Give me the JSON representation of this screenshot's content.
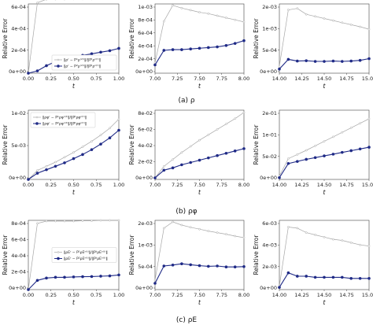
{
  "figure": {
    "captions": [
      "(a)  ρ",
      "(b)  ρφ",
      "(c)  ρE"
    ],
    "series_colors": {
      "gray": "#a6a6a6",
      "blue": "#1f2a86"
    },
    "ylabel": "Relative Error",
    "xlabel": "t"
  },
  "chart_data": [
    {
      "type": "line",
      "row": 0,
      "col": 0,
      "xlim": [
        0,
        1
      ],
      "ylim": [
        0,
        0.0006
      ],
      "xticks": [
        "0.00",
        "0.25",
        "0.50",
        "0.75",
        "1.00"
      ],
      "yticks": [
        "0e+00",
        "2e-04",
        "4e-04",
        "6e-04"
      ],
      "x": [
        0.0,
        0.1,
        0.2,
        0.3,
        0.4,
        0.5,
        0.6,
        0.7,
        0.8,
        0.9,
        1.0
      ],
      "legend_position": "lower-right",
      "series": [
        {
          "name": "‖ρʳ − P¹ρⁿ⁽ᵗ⁾‖/‖Pᵗρⁿ⁽ᵗ⁾‖",
          "color": "gray",
          "values": [
            0.0,
            0.00061,
            0.00064,
            0.000641,
            0.000641,
            0.000642,
            0.000642,
            0.000642,
            0.000643,
            0.000643,
            0.000644
          ]
        },
        {
          "name": "‖ρʳ − P²ρⁿ⁽ᵗ⁾‖/‖Pᵗρⁿ⁽ᵗ⁾‖",
          "color": "blue",
          "values": [
            0.0,
            2e-05,
            6.5e-05,
            0.0001,
            0.00012,
            0.00014,
            0.000155,
            0.000168,
            0.000182,
            0.000195,
            0.000215
          ]
        }
      ]
    },
    {
      "type": "line",
      "row": 0,
      "col": 1,
      "xlim": [
        7,
        8
      ],
      "ylim": [
        0,
        0.001
      ],
      "xticks": [
        "7.00",
        "7.25",
        "7.50",
        "7.75",
        "8.00"
      ],
      "yticks": [
        "0e+00",
        "2e-04",
        "4e-04",
        "6e-04",
        "8e-04",
        "1e-03"
      ],
      "x": [
        7.0,
        7.1,
        7.2,
        7.3,
        7.4,
        7.5,
        7.6,
        7.7,
        7.8,
        7.9,
        8.0
      ],
      "series": [
        {
          "color": "gray",
          "values": [
            0.00015,
            0.00075,
            0.00098,
            0.00094,
            0.00091,
            0.00088,
            0.00086,
            0.00083,
            0.0008,
            0.00077,
            0.00074
          ]
        },
        {
          "color": "blue",
          "values": [
            0.00012,
            0.00033,
            0.00034,
            0.00034,
            0.00035,
            0.00036,
            0.00037,
            0.00038,
            0.0004,
            0.00043,
            0.00047
          ]
        }
      ]
    },
    {
      "type": "line",
      "row": 0,
      "col": 2,
      "xlim": [
        14,
        15
      ],
      "ylim": [
        0,
        0.002
      ],
      "xticks": [
        "14.00",
        "14.25",
        "14.50",
        "14.75",
        "15.00"
      ],
      "yticks": [
        "0e+00",
        "5e-04",
        "1e-03",
        "2e-03"
      ],
      "x": [
        14.0,
        14.1,
        14.2,
        14.3,
        14.4,
        14.5,
        14.6,
        14.7,
        14.8,
        14.9,
        15.0
      ],
      "series": [
        {
          "color": "gray",
          "values": [
            0.0002,
            0.00183,
            0.00187,
            0.0017,
            0.00164,
            0.00158,
            0.00152,
            0.00146,
            0.0014,
            0.00134,
            0.00127
          ]
        },
        {
          "color": "blue",
          "values": [
            0.00012,
            0.0004,
            0.00035,
            0.00036,
            0.00034,
            0.00034,
            0.00035,
            0.00034,
            0.00035,
            0.00037,
            0.00042
          ]
        }
      ]
    },
    {
      "type": "line",
      "row": 1,
      "col": 0,
      "xlim": [
        0,
        1
      ],
      "ylim": [
        0,
        0.01
      ],
      "xticks": [
        "0.00",
        "0.25",
        "0.50",
        "0.75",
        "1.00"
      ],
      "yticks": [
        "0e+00",
        "5e-03",
        "1e-02"
      ],
      "x": [
        0.0,
        0.1,
        0.2,
        0.3,
        0.4,
        0.5,
        0.6,
        0.7,
        0.8,
        0.9,
        1.0
      ],
      "legend_position": "top-left",
      "series": [
        {
          "name": "‖ρφʳ − P¹ρφⁿ⁽ᵗ⁾‖/‖Pᵗρφⁿ⁽ᵗ⁾‖",
          "color": "gray",
          "values": [
            0.0,
            0.0013,
            0.0019,
            0.0025,
            0.0032,
            0.0039,
            0.0047,
            0.0055,
            0.0064,
            0.0074,
            0.0087
          ]
        },
        {
          "name": "‖ρφʳ − P²ρφⁿ⁽ᵗ⁾‖/‖Pᵗρφⁿ⁽ᵗ⁾‖",
          "color": "blue",
          "values": [
            0.0,
            0.0009,
            0.0014,
            0.0019,
            0.0024,
            0.003,
            0.0036,
            0.0043,
            0.0051,
            0.006,
            0.0071
          ]
        }
      ]
    },
    {
      "type": "line",
      "row": 1,
      "col": 1,
      "xlim": [
        7,
        8
      ],
      "ylim": [
        0,
        0.09
      ],
      "xticks": [
        "7.00",
        "7.25",
        "7.50",
        "7.75",
        "8.00"
      ],
      "yticks": [
        "0e+00",
        "2e-02",
        "4e-02",
        "6e-02",
        "8e-02"
      ],
      "x": [
        7.0,
        7.1,
        7.2,
        7.3,
        7.4,
        7.5,
        7.6,
        7.7,
        7.8,
        7.9,
        8.0
      ],
      "series": [
        {
          "color": "gray",
          "values": [
            0.002,
            0.017,
            0.026,
            0.035,
            0.043,
            0.051,
            0.058,
            0.065,
            0.072,
            0.079,
            0.087
          ]
        },
        {
          "color": "blue",
          "values": [
            0.002,
            0.012,
            0.015,
            0.019,
            0.022,
            0.025,
            0.028,
            0.031,
            0.034,
            0.037,
            0.04
          ]
        }
      ]
    },
    {
      "type": "line",
      "row": 1,
      "col": 2,
      "xlim": [
        14,
        15
      ],
      "ylim": [
        0,
        0.2
      ],
      "xticks": [
        "14.00",
        "14.25",
        "14.50",
        "14.75",
        "15.00"
      ],
      "yticks": [
        "0e+00",
        "5e-02",
        "1e-01",
        "2e-01"
      ],
      "x": [
        14.0,
        14.1,
        14.2,
        14.3,
        14.4,
        14.5,
        14.6,
        14.7,
        14.8,
        14.9,
        15.0
      ],
      "series": [
        {
          "color": "gray",
          "values": [
            0.01,
            0.06,
            0.072,
            0.084,
            0.097,
            0.11,
            0.123,
            0.136,
            0.149,
            0.162,
            0.175
          ]
        },
        {
          "color": "blue",
          "values": [
            0.005,
            0.046,
            0.052,
            0.058,
            0.063,
            0.068,
            0.073,
            0.078,
            0.083,
            0.088,
            0.093
          ]
        }
      ]
    },
    {
      "type": "line",
      "row": 2,
      "col": 0,
      "xlim": [
        0,
        1
      ],
      "ylim": [
        0,
        0.0009
      ],
      "xticks": [
        "0.00",
        "0.25",
        "0.50",
        "0.75",
        "1.00"
      ],
      "yticks": [
        "0e+00",
        "2e-04",
        "4e-04",
        "6e-04",
        "8e-04"
      ],
      "x": [
        0.0,
        0.1,
        0.2,
        0.3,
        0.4,
        0.5,
        0.6,
        0.7,
        0.8,
        0.9,
        1.0
      ],
      "legend_position": "center-right",
      "series": [
        {
          "name": "‖ρEʳ − P¹ρEⁿ⁽ᵗ⁾‖/‖PᵗρEⁿ⁽ᵗ⁾‖",
          "color": "gray",
          "values": [
            0.0,
            0.00086,
            0.00089,
            0.00089,
            0.00089,
            0.00089,
            0.000895,
            0.000895,
            0.0009,
            0.0009,
            0.0009
          ]
        },
        {
          "name": "‖ρEʳ − P²ρEⁿ⁽ᵗ⁾‖/‖PᵗρEⁿ⁽ᵗ⁾‖",
          "color": "blue",
          "values": [
            0.0,
            0.00012,
            0.00015,
            0.00016,
            0.00016,
            0.000165,
            0.000168,
            0.00017,
            0.000174,
            0.000178,
            0.00019
          ]
        }
      ]
    },
    {
      "type": "line",
      "row": 2,
      "col": 1,
      "xlim": [
        7,
        8
      ],
      "ylim": [
        0,
        0.0022
      ],
      "xticks": [
        "7.00",
        "7.25",
        "7.50",
        "7.75",
        "8.00"
      ],
      "yticks": [
        "0e+00",
        "5e-04",
        "1e-03",
        "2e-03"
      ],
      "x": [
        7.0,
        7.1,
        7.2,
        7.3,
        7.4,
        7.5,
        7.6,
        7.7,
        7.8,
        7.9,
        8.0
      ],
      "series": [
        {
          "color": "gray",
          "values": [
            0.0003,
            0.00195,
            0.00215,
            0.00205,
            0.00198,
            0.00192,
            0.00186,
            0.00181,
            0.00176,
            0.0017,
            0.00165
          ]
        },
        {
          "color": "blue",
          "values": [
            0.0002,
            0.00075,
            0.00078,
            0.00082,
            0.00079,
            0.00076,
            0.00074,
            0.00075,
            0.00072,
            0.00072,
            0.00073
          ]
        }
      ]
    },
    {
      "type": "line",
      "row": 2,
      "col": 2,
      "xlim": [
        14,
        15
      ],
      "ylim": [
        0,
        0.0062
      ],
      "xticks": [
        "14.00",
        "14.25",
        "14.50",
        "14.75",
        "15.00"
      ],
      "yticks": [
        "0e+00",
        "2e-03",
        "4e-03",
        "6e-03"
      ],
      "x": [
        14.0,
        14.1,
        14.2,
        14.3,
        14.4,
        14.5,
        14.6,
        14.7,
        14.8,
        14.9,
        15.0
      ],
      "series": [
        {
          "color": "gray",
          "values": [
            0.0003,
            0.0056,
            0.0055,
            0.0051,
            0.0049,
            0.0047,
            0.0045,
            0.0044,
            0.0042,
            0.004,
            0.0039
          ]
        },
        {
          "color": "blue",
          "values": [
            0.0002,
            0.0015,
            0.0012,
            0.0012,
            0.0011,
            0.0011,
            0.0011,
            0.0011,
            0.001,
            0.001,
            0.001
          ]
        }
      ]
    }
  ]
}
